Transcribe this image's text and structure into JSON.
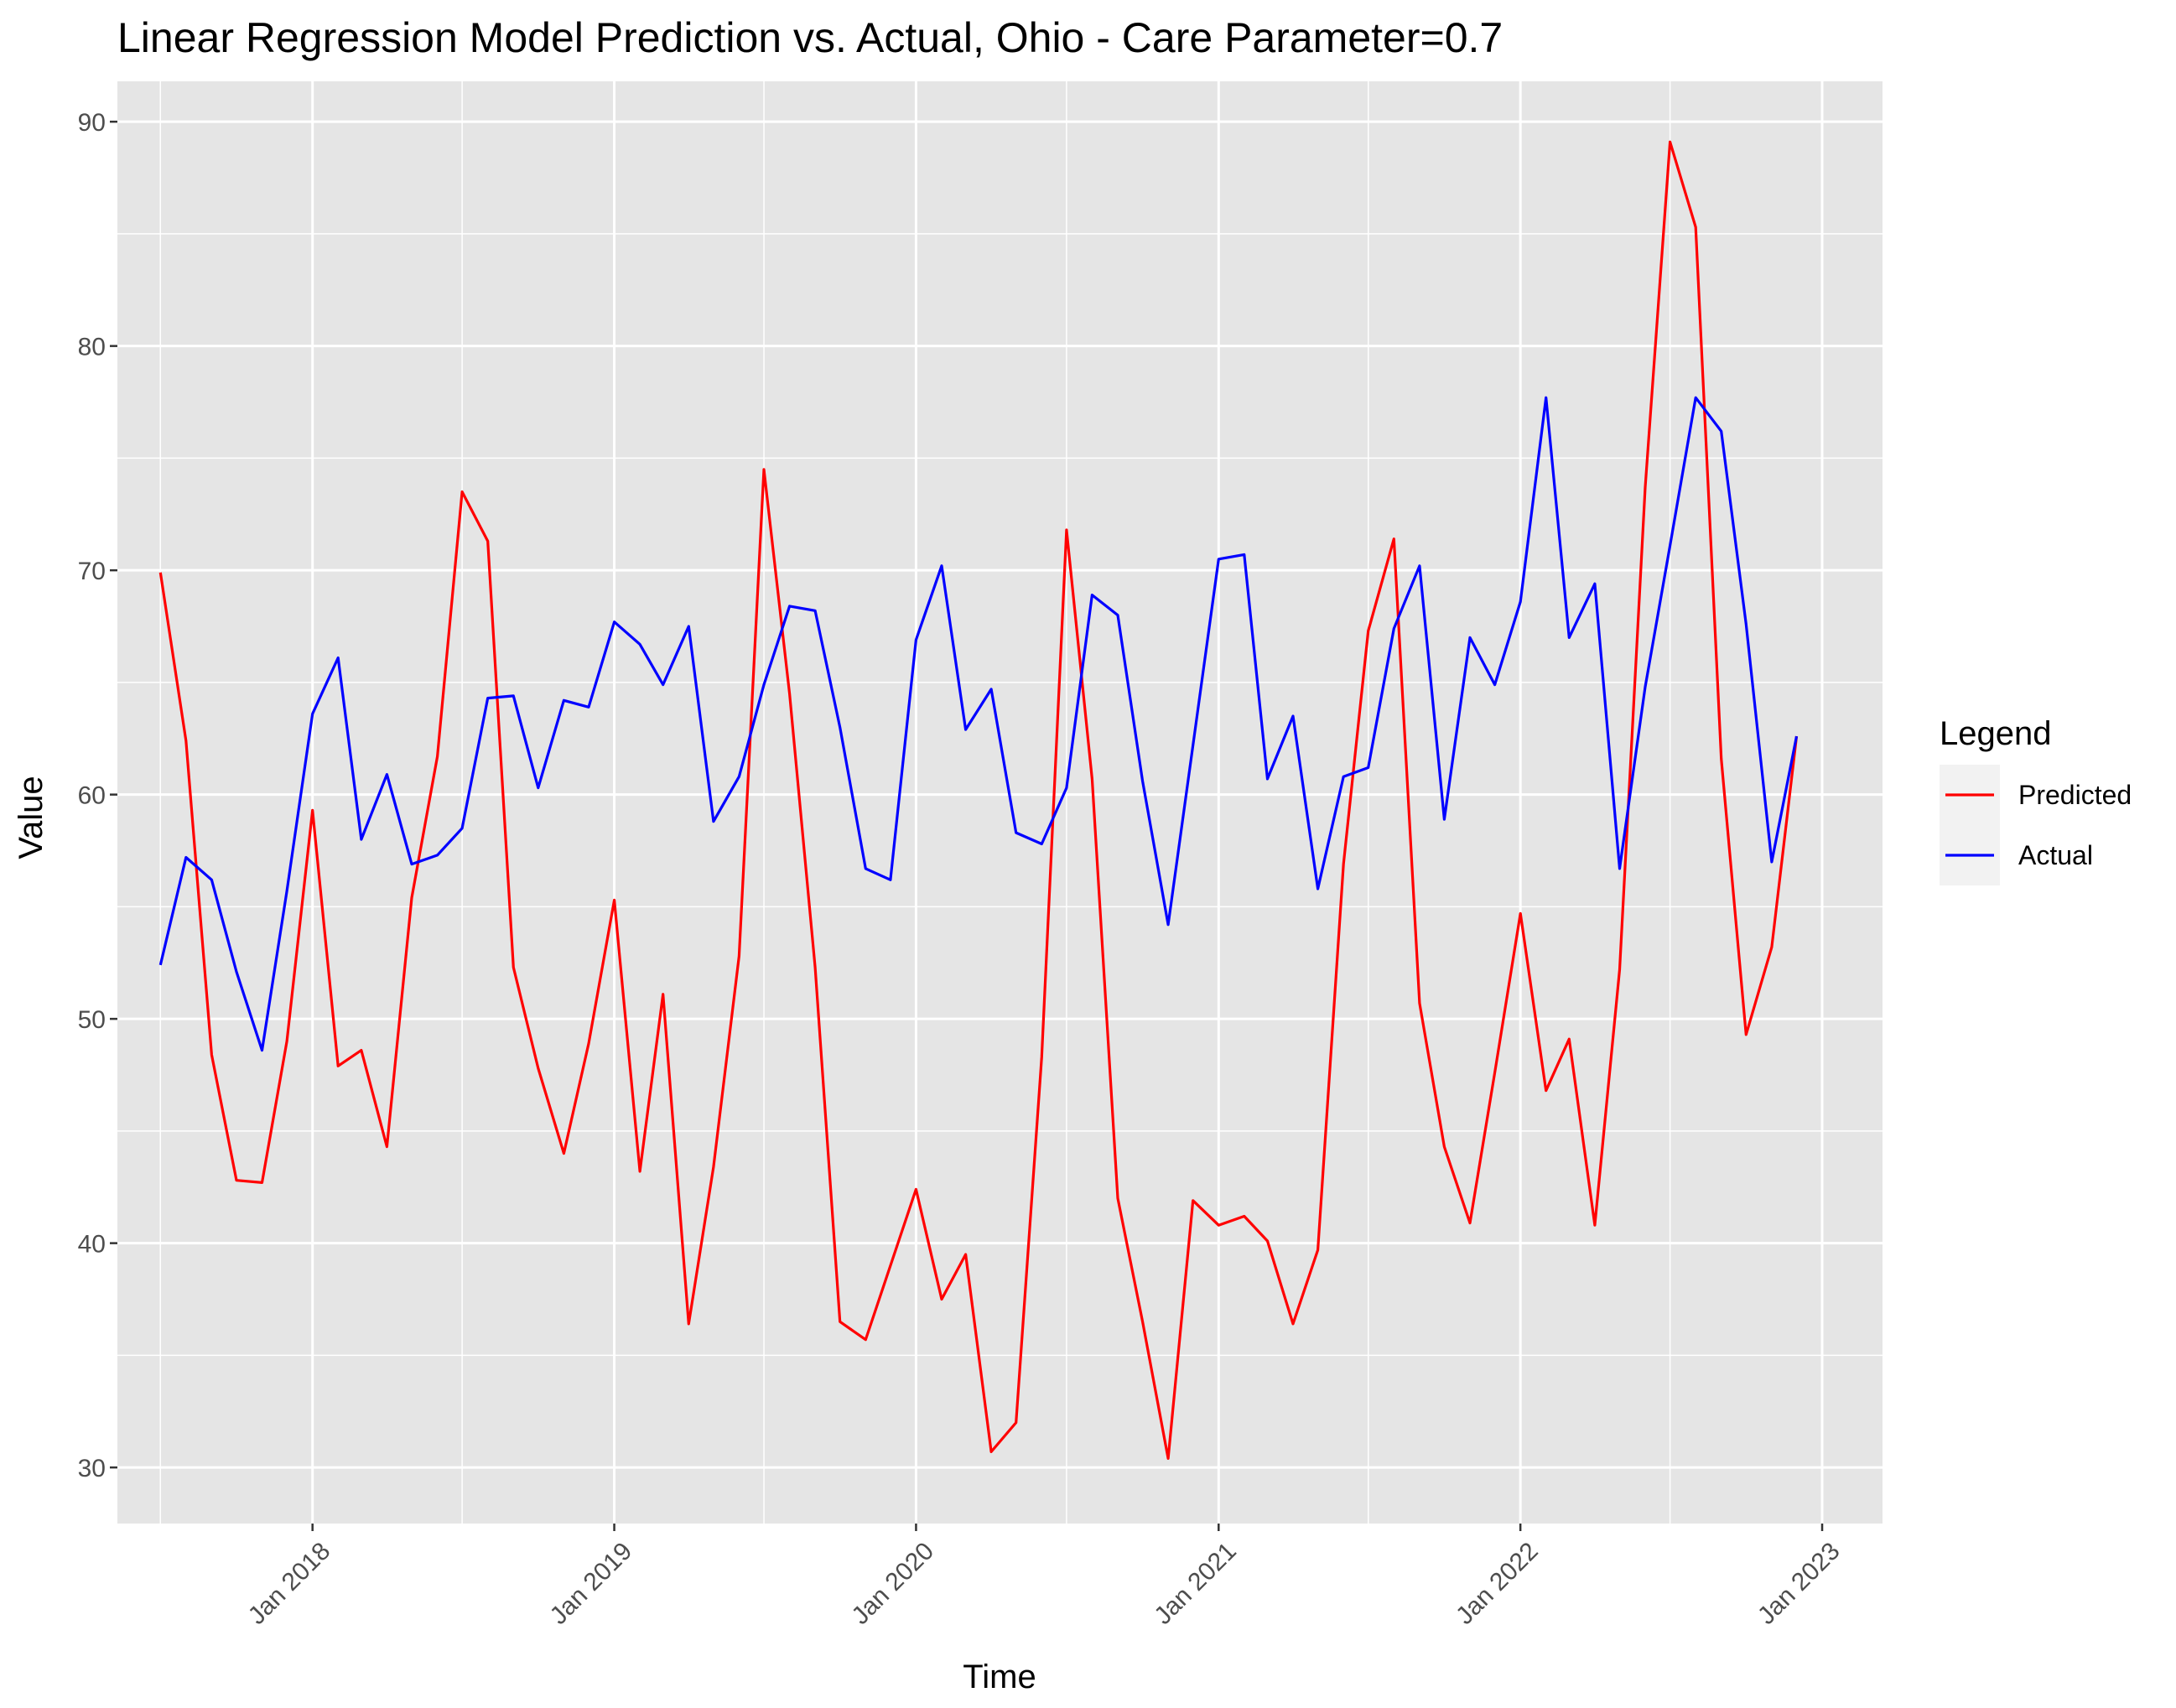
{
  "chart_data": {
    "type": "line",
    "title": "Linear Regression Model Prediction vs. Actual, Ohio - Care Parameter=0.7",
    "xlabel": "Time",
    "ylabel": "Value",
    "x_tick_labels": [
      "Jan 2018",
      "Jan 2019",
      "Jan 2020",
      "Jan 2021",
      "Jan 2022",
      "Jan 2023"
    ],
    "y_ticks": [
      30,
      40,
      50,
      60,
      70,
      80,
      90
    ],
    "ylim": [
      27.5,
      91.8
    ],
    "xlim": [
      "2017-05-10",
      "2023-03-15"
    ],
    "grid": true,
    "legend": {
      "title": "Legend",
      "position": "right"
    },
    "x": [
      "2017-07-01",
      "2017-08-01",
      "2017-09-01",
      "2017-10-01",
      "2017-11-01",
      "2017-12-01",
      "2018-01-01",
      "2018-02-01",
      "2018-03-01",
      "2018-04-01",
      "2018-05-01",
      "2018-06-01",
      "2018-07-01",
      "2018-08-01",
      "2018-09-01",
      "2018-10-01",
      "2018-11-01",
      "2018-12-01",
      "2019-01-01",
      "2019-02-01",
      "2019-03-01",
      "2019-04-01",
      "2019-05-01",
      "2019-06-01",
      "2019-07-01",
      "2019-08-01",
      "2019-09-01",
      "2019-10-01",
      "2019-11-01",
      "2019-12-01",
      "2020-01-01",
      "2020-02-01",
      "2020-03-01",
      "2020-04-01",
      "2020-05-01",
      "2020-06-01",
      "2020-07-01",
      "2020-08-01",
      "2020-09-01",
      "2020-10-01",
      "2020-11-01",
      "2020-12-01",
      "2021-01-01",
      "2021-02-01",
      "2021-03-01",
      "2021-04-01",
      "2021-05-01",
      "2021-06-01",
      "2021-07-01",
      "2021-08-01",
      "2021-09-01",
      "2021-10-01",
      "2021-11-01",
      "2021-12-01",
      "2022-01-01",
      "2022-02-01",
      "2022-03-01",
      "2022-04-01",
      "2022-05-01",
      "2022-06-01",
      "2022-07-01",
      "2022-08-01",
      "2022-09-01",
      "2022-10-01",
      "2022-11-01",
      "2022-12-01"
    ],
    "series": [
      {
        "name": "Predicted",
        "color": "#ff0000",
        "values": [
          69.9,
          62.4,
          48.4,
          42.8,
          42.7,
          49.0,
          59.3,
          47.9,
          48.6,
          44.3,
          55.4,
          61.7,
          73.5,
          71.3,
          52.3,
          47.8,
          44.0,
          48.9,
          55.3,
          43.2,
          51.1,
          36.4,
          43.4,
          52.8,
          74.5,
          64.5,
          52.3,
          36.5,
          35.7,
          39.0,
          42.4,
          37.5,
          39.5,
          30.7,
          32.0,
          48.3,
          71.8,
          60.7,
          42.0,
          36.5,
          30.4,
          41.9,
          40.8,
          41.2,
          40.1,
          36.4,
          39.7,
          56.9,
          67.3,
          71.4,
          50.7,
          44.3,
          40.9,
          47.6,
          54.7,
          46.8,
          49.1,
          40.8,
          52.2,
          73.7,
          89.1,
          85.3,
          61.6,
          49.3,
          53.2,
          62.6
        ]
      },
      {
        "name": "Actual",
        "color": "#0000ff",
        "values": [
          52.4,
          57.2,
          56.2,
          52.1,
          48.6,
          55.7,
          63.6,
          66.1,
          58.0,
          60.9,
          56.9,
          57.3,
          58.5,
          64.3,
          64.4,
          60.3,
          64.2,
          63.9,
          67.7,
          66.7,
          64.9,
          67.5,
          58.8,
          60.8,
          64.9,
          68.4,
          68.2,
          63.0,
          56.7,
          56.2,
          66.9,
          70.2,
          62.9,
          64.7,
          58.3,
          57.8,
          60.3,
          68.9,
          68.0,
          60.6,
          54.2,
          62.2,
          70.5,
          70.7,
          60.7,
          63.5,
          55.8,
          60.8,
          61.2,
          67.4,
          70.2,
          58.9,
          67.0,
          64.9,
          68.6,
          77.7,
          67.0,
          69.4,
          56.7,
          64.8,
          71.1,
          77.7,
          76.2,
          67.6,
          57.0,
          62.6
        ]
      }
    ]
  }
}
